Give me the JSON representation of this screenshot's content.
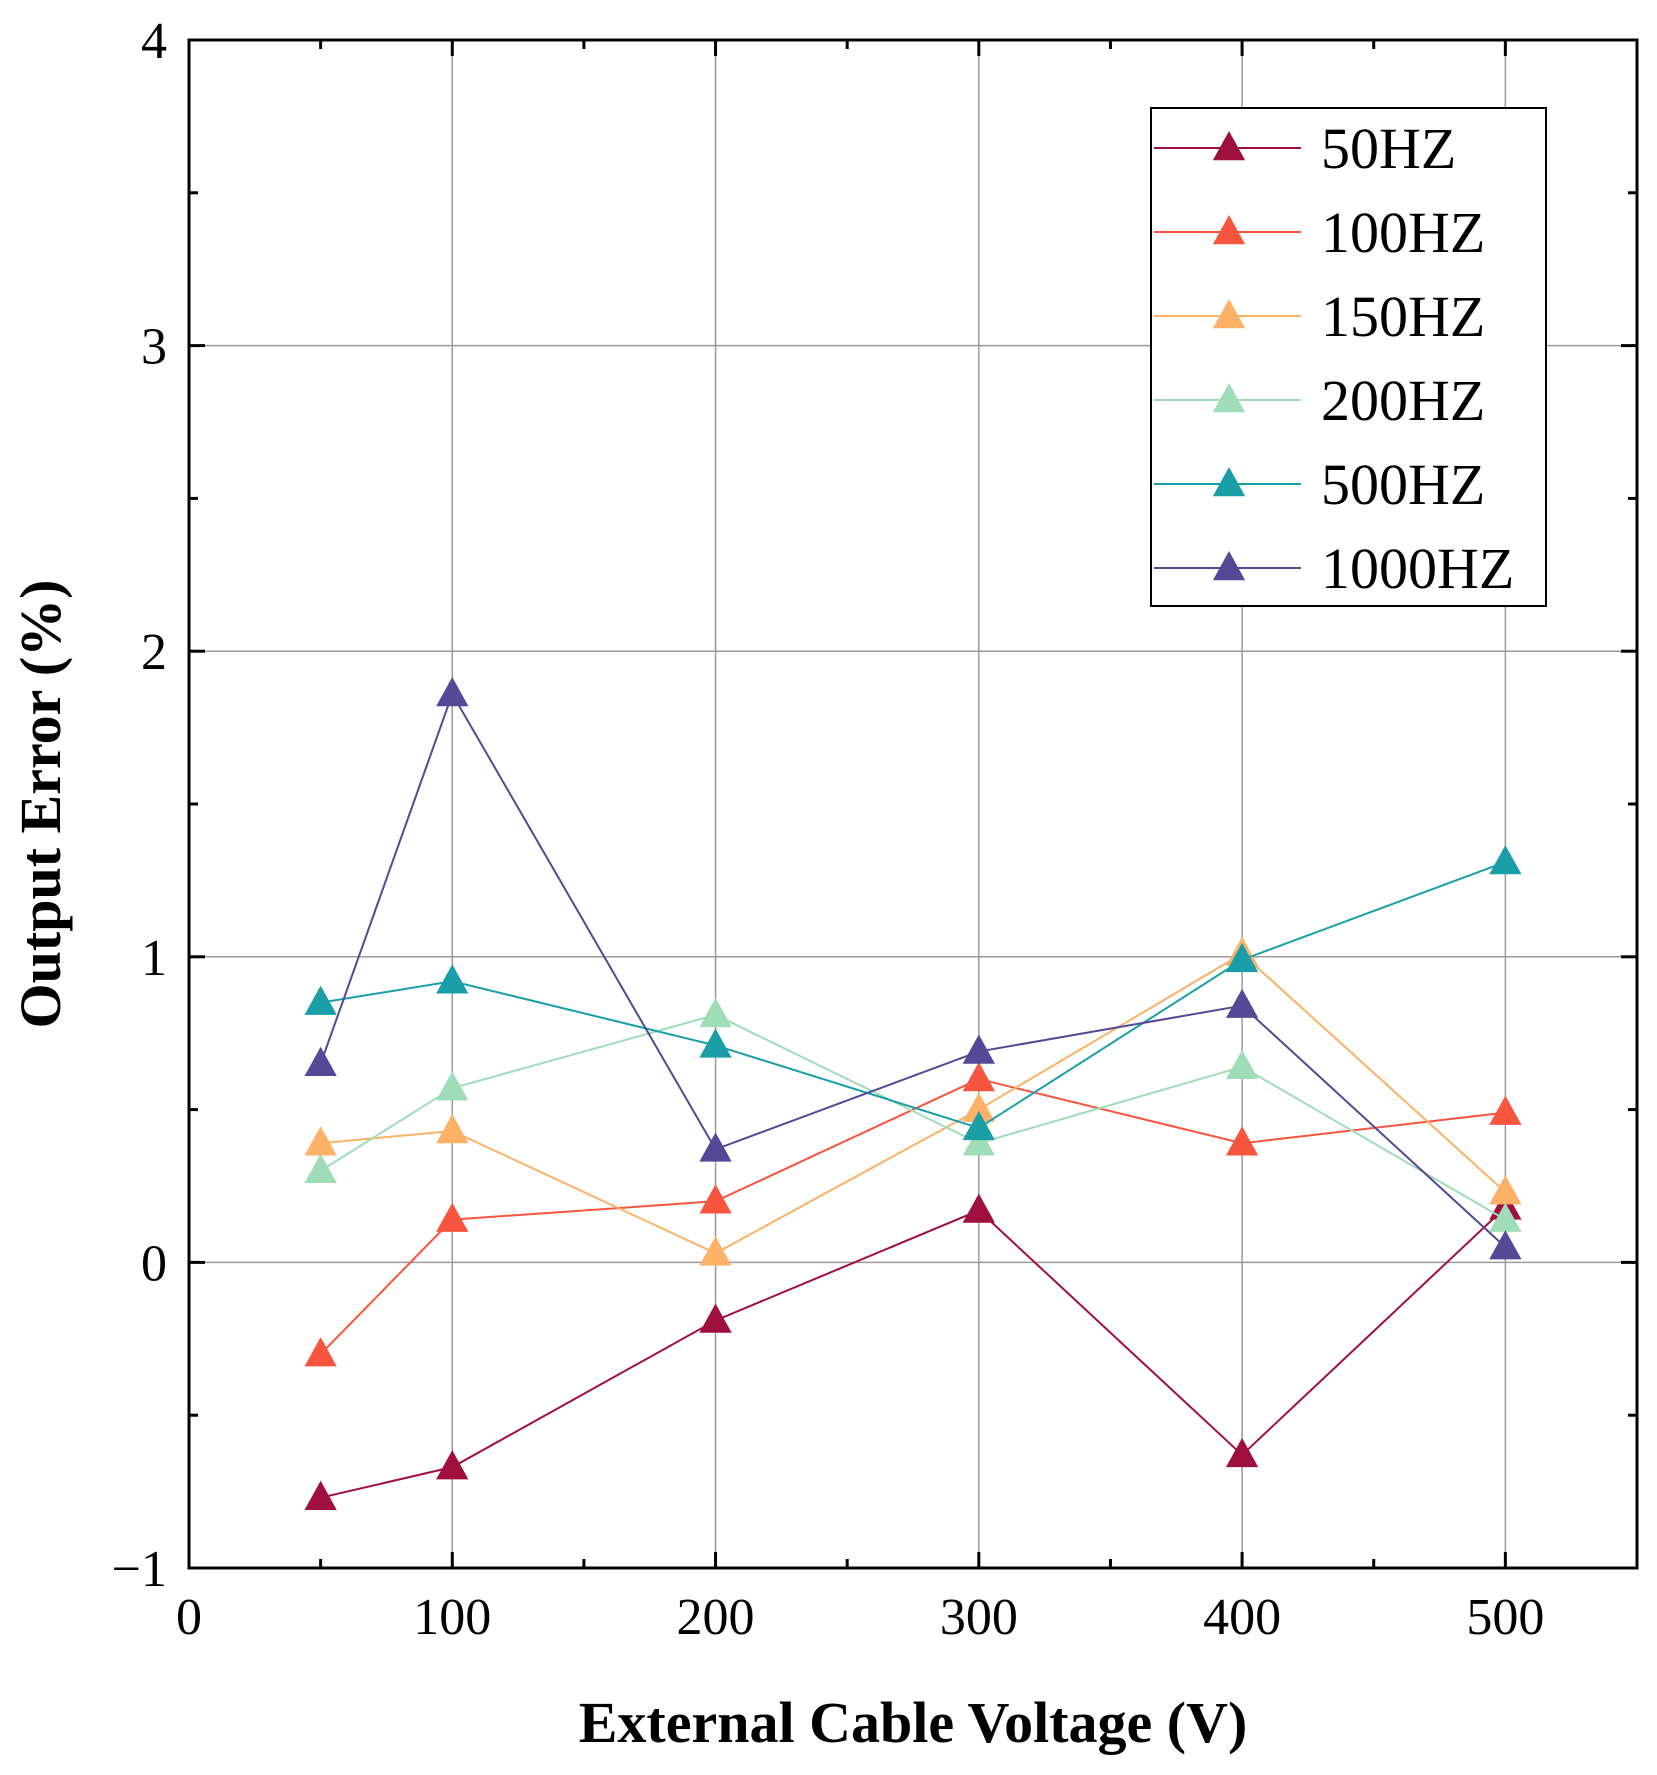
{
  "chart_data": {
    "type": "line",
    "xlabel": "External Cable Voltage (V)",
    "ylabel": "Output Error (%)",
    "xlim": [
      0,
      550
    ],
    "ylim": [
      -1,
      4
    ],
    "xticks": [
      0,
      100,
      200,
      300,
      400,
      500
    ],
    "xtick_labels": [
      "0",
      "100",
      "200",
      "300",
      "400",
      "500"
    ],
    "yticks": [
      -1,
      0,
      1,
      2,
      3,
      4
    ],
    "ytick_labels": [
      "−1",
      "0",
      "1",
      "2",
      "3",
      "4"
    ],
    "grid": true,
    "legend_position": "top-right",
    "marker": "triangle-up",
    "x": [
      50,
      100,
      200,
      300,
      400,
      500
    ],
    "series": [
      {
        "name": "50HZ",
        "color": "#a0103e",
        "values": [
          -0.77,
          -0.67,
          -0.19,
          0.17,
          -0.63,
          0.18
        ]
      },
      {
        "name": "100HZ",
        "color": "#f8553f",
        "values": [
          -0.3,
          0.14,
          0.2,
          0.6,
          0.39,
          0.49
        ]
      },
      {
        "name": "150HZ",
        "color": "#fdb267",
        "values": [
          0.39,
          0.43,
          0.03,
          0.5,
          1.01,
          0.23
        ]
      },
      {
        "name": "200HZ",
        "color": "#9fdcb8",
        "values": [
          0.3,
          0.57,
          0.81,
          0.39,
          0.64,
          0.14
        ]
      },
      {
        "name": "500HZ",
        "color": "#1a9fa8",
        "values": [
          0.85,
          0.92,
          0.71,
          0.44,
          0.99,
          1.31
        ]
      },
      {
        "name": "1000HZ",
        "color": "#554896",
        "values": [
          0.65,
          1.86,
          0.37,
          0.69,
          0.84,
          0.05
        ]
      }
    ]
  }
}
